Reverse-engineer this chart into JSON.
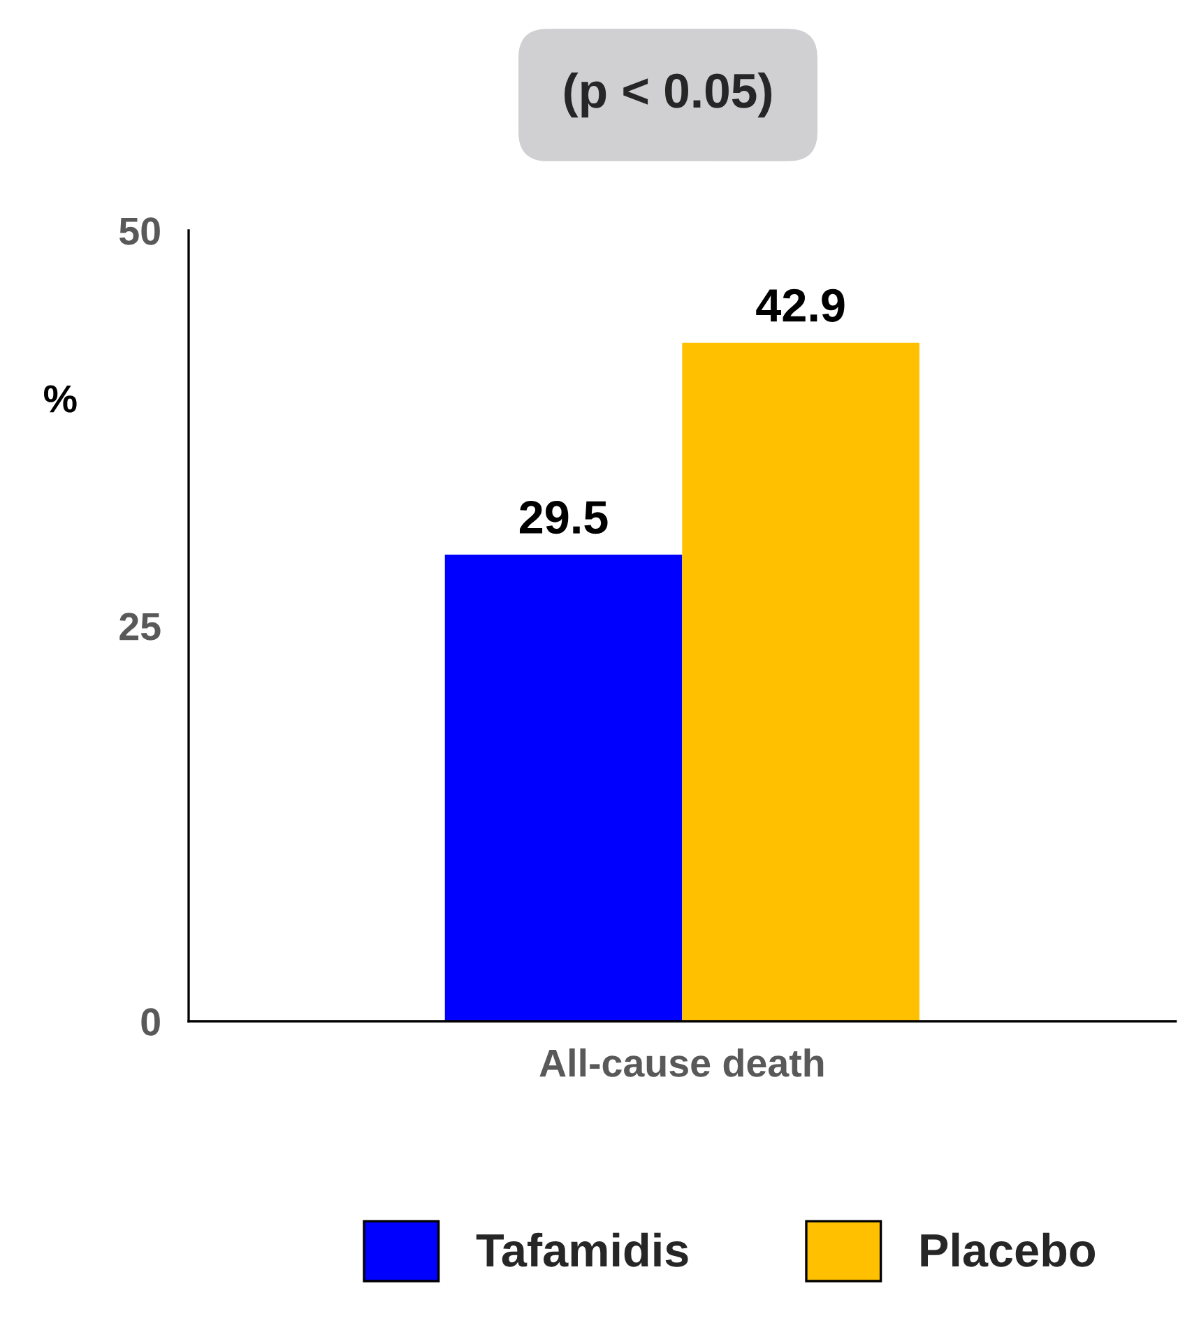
{
  "chart_data": {
    "type": "bar",
    "categories": [
      "All-cause death"
    ],
    "series": [
      {
        "name": "Tafamidis",
        "color": "#0000ff",
        "values": [
          29.5
        ]
      },
      {
        "name": "Placebo",
        "color": "#ffc000",
        "values": [
          42.9
        ]
      }
    ],
    "ylabel": "%",
    "ylim": [
      0,
      50
    ],
    "yticks": [
      0,
      25,
      50
    ],
    "grid": false,
    "legend": "bottom",
    "data_labels": true,
    "annotations": [
      "(p < 0.05)"
    ]
  }
}
